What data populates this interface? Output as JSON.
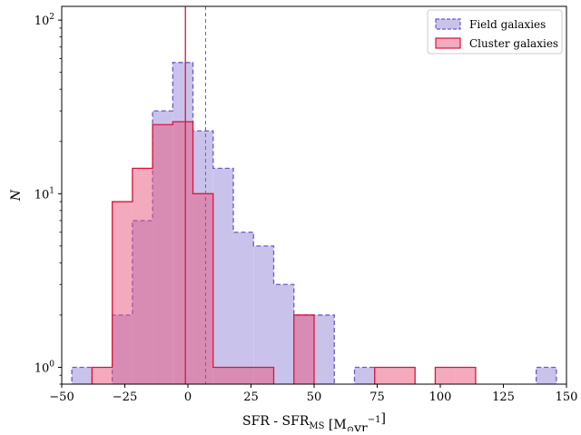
{
  "chart_data": {
    "type": "histogram",
    "xlabel": "SFR - SFR",
    "xlabel_sub": "MS",
    "xlabel_unit_pre": " [M",
    "xlabel_unit_sun": "⊙",
    "xlabel_unit_mid": "yr",
    "xlabel_unit_sup": "−1",
    "xlabel_unit_post": "]",
    "ylabel": "N",
    "xlim": [
      -50,
      150
    ],
    "ylim": [
      0.8,
      120
    ],
    "yscale": "log",
    "xticks": [
      -50,
      -25,
      0,
      25,
      50,
      75,
      100,
      125,
      150
    ],
    "xtick_labels": [
      "−50",
      "−25",
      "0",
      "25",
      "50",
      "75",
      "100",
      "125",
      "150"
    ],
    "yticks": [
      {
        "value": 1,
        "base": "10",
        "exp": "0"
      },
      {
        "value": 10,
        "base": "10",
        "exp": "1"
      },
      {
        "value": 100,
        "base": "10",
        "exp": "2"
      }
    ],
    "legend_position": "top-right",
    "series": [
      {
        "name": "Field galaxies",
        "style": "dashed",
        "edge_color": "#6a5acd",
        "fill_color": "#c9c3ec",
        "bin_edges": [
          -46,
          -38,
          -30,
          -22,
          -14,
          -6,
          2,
          10,
          18,
          26,
          34,
          42,
          50,
          58,
          66,
          74,
          82,
          90,
          98,
          106,
          114,
          122,
          130,
          138,
          146
        ],
        "counts": [
          1,
          0,
          2,
          7,
          30,
          57,
          23,
          14,
          6,
          5,
          3,
          2,
          2,
          0,
          1,
          0,
          0,
          0,
          0,
          0,
          0,
          0,
          0,
          1
        ]
      },
      {
        "name": "Cluster galaxies",
        "style": "solid",
        "edge_color": "#dc143c",
        "fill_color": "#e8557a",
        "fill_opacity": 0.5,
        "bin_edges": [
          -38,
          -30,
          -22,
          -14,
          -6,
          2,
          10,
          18,
          26,
          34,
          42,
          50,
          58,
          66,
          74,
          82,
          90,
          98,
          106,
          114,
          122
        ],
        "counts": [
          1,
          9,
          14,
          25,
          26,
          10,
          1,
          1,
          1,
          0,
          2,
          0,
          0,
          0,
          1,
          1,
          0,
          1,
          1,
          0
        ]
      }
    ],
    "vlines": [
      {
        "x": -1,
        "style": "solid",
        "color": "#dc143c"
      },
      {
        "x": 7,
        "style": "dashed",
        "color": "#6a5acd"
      }
    ]
  }
}
